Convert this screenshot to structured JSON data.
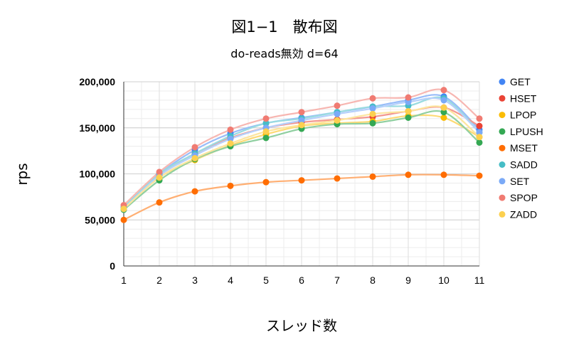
{
  "chart_data": {
    "type": "scatter",
    "title": "図1−1　散布図",
    "subtitle": "do-reads無効 d=64",
    "xlabel": "スレッド数",
    "ylabel": "rps",
    "x": [
      1,
      2,
      3,
      4,
      5,
      6,
      7,
      8,
      9,
      10,
      11
    ],
    "xlim": [
      1,
      11
    ],
    "ylim": [
      0,
      200000
    ],
    "yticks": [
      0,
      50000,
      100000,
      150000,
      200000
    ],
    "ytick_labels": [
      "0",
      "50,000",
      "100,000",
      "150,000",
      "200,000"
    ],
    "trendlines": true,
    "legend_position": "right",
    "series": [
      {
        "name": "GET",
        "color": "#4285f4",
        "values": [
          63000,
          100000,
          126000,
          144000,
          155000,
          161000,
          167000,
          173000,
          180000,
          184000,
          148000
        ]
      },
      {
        "name": "HSET",
        "color": "#ea4335",
        "values": [
          63000,
          99000,
          122000,
          139000,
          150000,
          156000,
          159000,
          162000,
          168000,
          172000,
          152000
        ]
      },
      {
        "name": "LPOP",
        "color": "#fbbc04",
        "values": [
          62000,
          96000,
          115000,
          131000,
          143000,
          152000,
          155000,
          157000,
          163000,
          161000,
          140000
        ]
      },
      {
        "name": "LPUSH",
        "color": "#34a853",
        "values": [
          61000,
          93000,
          116000,
          130000,
          139000,
          149000,
          154000,
          155000,
          161000,
          167000,
          134000
        ]
      },
      {
        "name": "MSET",
        "color": "#ff6d01",
        "values": [
          50000,
          69000,
          81000,
          87000,
          91000,
          93000,
          95000,
          97000,
          99000,
          99000,
          98000
        ]
      },
      {
        "name": "SADD",
        "color": "#46bdc6",
        "values": [
          64000,
          100000,
          122000,
          141000,
          155000,
          160000,
          167000,
          173000,
          174000,
          182000,
          145000
        ]
      },
      {
        "name": "SET",
        "color": "#7baaf7",
        "values": [
          62000,
          98000,
          120000,
          138000,
          150000,
          158000,
          165000,
          171000,
          178000,
          180000,
          145000
        ]
      },
      {
        "name": "SPOP",
        "color": "#f07b72",
        "values": [
          66000,
          102000,
          129000,
          148000,
          160000,
          167000,
          174000,
          182000,
          183000,
          191000,
          160000
        ]
      },
      {
        "name": "ZADD",
        "color": "#fcd04f",
        "values": [
          62000,
          96000,
          117000,
          133000,
          146000,
          153000,
          158000,
          165000,
          168000,
          172000,
          140000
        ]
      }
    ]
  }
}
